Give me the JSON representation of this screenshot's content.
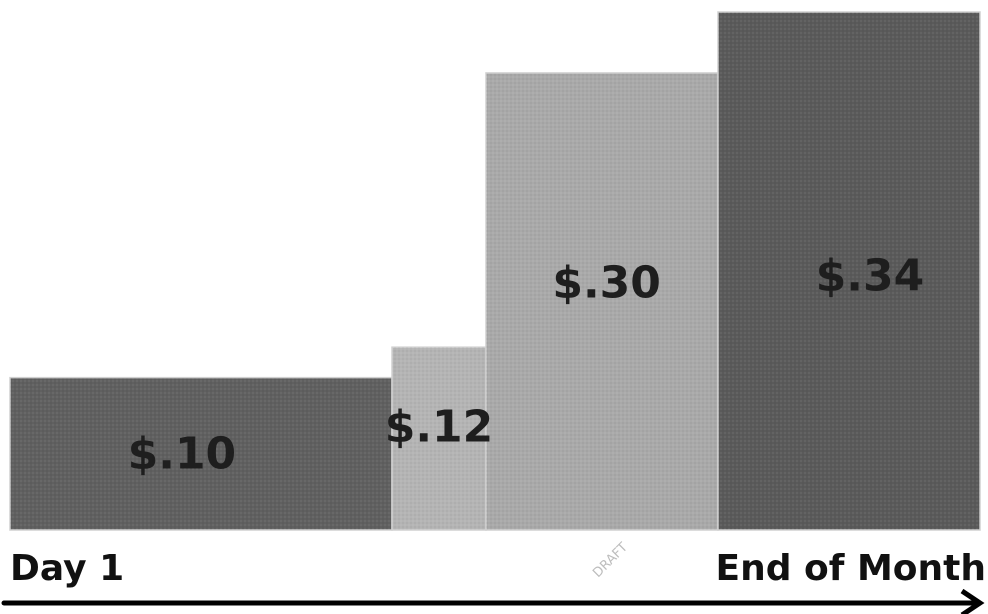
{
  "chart_data": {
    "type": "bar",
    "categories": [
      "$.10",
      "$.12",
      "$.30",
      "$.34"
    ],
    "values": [
      0.1,
      0.12,
      0.3,
      0.34
    ],
    "labels": [
      "$.10",
      "$.12",
      "$.30",
      "$.34"
    ],
    "bar_colors": [
      "#606060",
      "#b4b4b4",
      "#a9a9a9",
      "#5a5a5a"
    ],
    "title": "",
    "xlabel": "",
    "ylabel": "",
    "ylim": [
      0,
      0.34
    ],
    "grid": false,
    "legend": "none",
    "x_axis": {
      "start_label": "Day 1",
      "end_label": "End of Month",
      "arrow": "right"
    },
    "watermark": "DRAFT"
  }
}
